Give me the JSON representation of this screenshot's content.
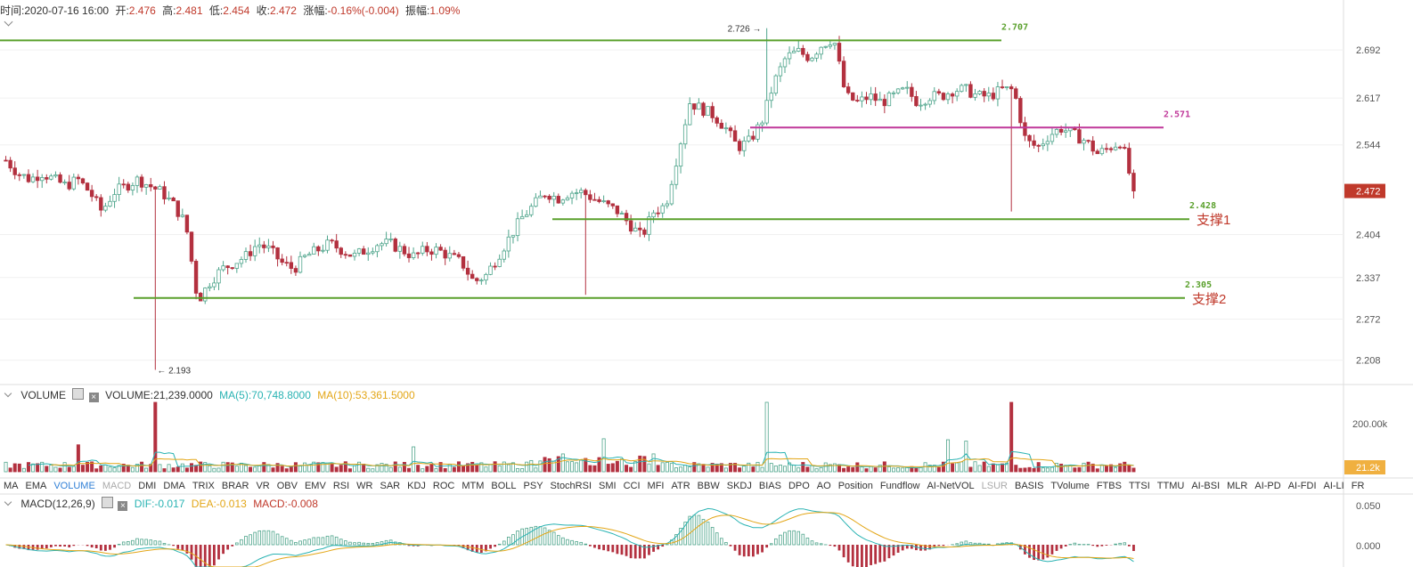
{
  "header": {
    "time_label": "时间:",
    "time": "2020-07-16 16:00",
    "open_label": "开:",
    "open": "2.476",
    "high_label": "高:",
    "high": "2.481",
    "low_label": "低:",
    "low": "2.454",
    "close_label": "收:",
    "close": "2.472",
    "change_label": "涨幅:",
    "change": "-0.16%(-0.004)",
    "amp_label": "振幅:",
    "amp": "1.09%"
  },
  "price_axis": {
    "ticks": [
      "2.692",
      "2.617",
      "2.544",
      "2.404",
      "2.337",
      "2.272",
      "2.208"
    ],
    "current": "2.472"
  },
  "annotations": {
    "high_marker": "2.726",
    "low_marker": "2.193",
    "lines": [
      {
        "value": "2.707",
        "label": ""
      },
      {
        "value": "2.571",
        "label": ""
      },
      {
        "value": "2.428",
        "label": "支撑1"
      },
      {
        "value": "2.305",
        "label": "支撑2"
      }
    ]
  },
  "volume": {
    "title": "VOLUME",
    "value_text": "VOLUME:21,239.0000",
    "ma5_text": "MA(5):70,748.8000",
    "ma10_text": "MA(10):53,361.5000",
    "axis_tick": "200.00k",
    "current": "21.2k"
  },
  "macd": {
    "title": "MACD(12,26,9)",
    "dif_text": "DIF:-0.017",
    "dea_text": "DEA:-0.013",
    "macd_text": "MACD:-0.008",
    "axis_ticks": [
      "0.050",
      "0.000"
    ]
  },
  "indicators": [
    "MA",
    "EMA",
    "VOLUME",
    "MACD",
    "DMI",
    "DMA",
    "TRIX",
    "BRAR",
    "VR",
    "OBV",
    "EMV",
    "RSI",
    "WR",
    "SAR",
    "KDJ",
    "ROC",
    "MTM",
    "BOLL",
    "PSY",
    "StochRSI",
    "SMI",
    "CCI",
    "MFI",
    "ATR",
    "BBW",
    "SKDJ",
    "BIAS",
    "DPO",
    "AO",
    "Position",
    "Fundflow",
    "AI-NetVOL",
    "LSUR",
    "BASIS",
    "TVolume",
    "FTBS",
    "TTSI",
    "TTMU",
    "AI-BSI",
    "MLR",
    "AI-PD",
    "AI-FDI",
    "AI-LI",
    "FR"
  ],
  "active_indicators": [
    "VOLUME"
  ],
  "muted_indicators": [
    "MACD",
    "LSUR"
  ],
  "colors": {
    "up": "#4fa58c",
    "down": "#b3303f",
    "green_line": "#5aa02c",
    "magenta_line": "#c0399a",
    "support_text": "#c0392b",
    "ma5": "#2ab3b3",
    "ma10": "#e3a617"
  },
  "chart_data": {
    "type": "candlestick",
    "ylim": [
      2.17,
      2.745
    ],
    "ohlc_approx": {
      "start": 2.49,
      "high": 2.726,
      "low": 2.193,
      "last": 2.472
    },
    "price_path": [
      2.52,
      2.5,
      2.49,
      2.5,
      2.49,
      2.48,
      2.49,
      2.47,
      2.44,
      2.47,
      2.48,
      2.49,
      2.48,
      2.47,
      2.45,
      2.42,
      2.3,
      2.33,
      2.35,
      2.36,
      2.37,
      2.39,
      2.38,
      2.36,
      2.35,
      2.37,
      2.38,
      2.39,
      2.38,
      2.37,
      2.38,
      2.39,
      2.39,
      2.38,
      2.37,
      2.38,
      2.38,
      2.37,
      2.36,
      2.33,
      2.34,
      2.37,
      2.4,
      2.43,
      2.45,
      2.47,
      2.46,
      2.47,
      2.47,
      2.46,
      2.45,
      2.44,
      2.42,
      2.4,
      2.44,
      2.45,
      2.53,
      2.61,
      2.6,
      2.59,
      2.57,
      2.54,
      2.55,
      2.58,
      2.64,
      2.68,
      2.69,
      2.68,
      2.7,
      2.71,
      2.62,
      2.61,
      2.62,
      2.61,
      2.62,
      2.63,
      2.61,
      2.62,
      2.62,
      2.63,
      2.63,
      2.62,
      2.62,
      2.63,
      2.63,
      2.55,
      2.54,
      2.56,
      2.57,
      2.56,
      2.55,
      2.53,
      2.54,
      2.55,
      2.47
    ],
    "volume_axis_ticks": [
      "200.00k"
    ],
    "macd_axis_ticks": [
      "0.050",
      "0.000"
    ]
  }
}
